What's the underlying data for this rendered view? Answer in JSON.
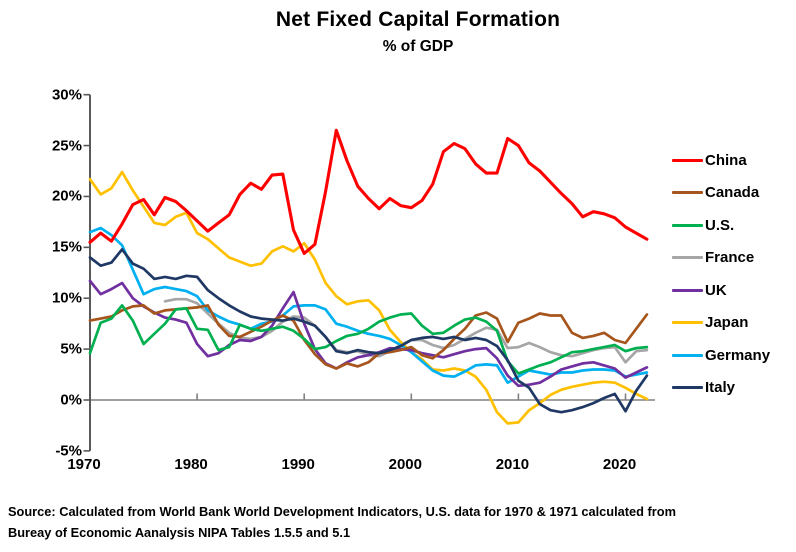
{
  "title": "Net Fixed Capital Formation",
  "subtitle": "% of GDP",
  "source_line1": "Source:  Calculated from World Bank World Development Indicators, U.S. data for 1970 & 1971 calculated from",
  "source_line2": "Bureay of Economic Aanalysis NIPA Tables 1.5.5 and 5.1",
  "chart_data": {
    "type": "line",
    "xlabel": "",
    "ylabel": "",
    "xlim": [
      1970,
      2022
    ],
    "ylim": [
      -5,
      30
    ],
    "x_ticks": [
      1970,
      1980,
      1990,
      2000,
      2010,
      2020
    ],
    "y_ticks": [
      30,
      25,
      20,
      15,
      10,
      5,
      0,
      -5
    ],
    "y_tick_suffix": "%",
    "grid": false,
    "legend_position": "right",
    "axis_color": "#595959",
    "zero_line_color": "#808080",
    "series": [
      {
        "name": "China",
        "color": "#FF0000",
        "start_year": 1970,
        "values": [
          15.5,
          16.4,
          15.6,
          17.3,
          19.2,
          19.7,
          18.2,
          19.9,
          19.5,
          18.6,
          17.6,
          16.6,
          17.4,
          18.2,
          20.2,
          21.3,
          20.7,
          22.1,
          22.2,
          16.7,
          14.4,
          15.3,
          20.5,
          26.5,
          23.5,
          21.0,
          19.8,
          18.8,
          19.8,
          19.1,
          18.9,
          19.6,
          21.2,
          24.4,
          25.2,
          24.7,
          23.2,
          22.3,
          22.3,
          25.7,
          25.0,
          23.3,
          22.5,
          21.4,
          20.3,
          19.3,
          18.0,
          18.5,
          18.3,
          17.9,
          17.0,
          16.4,
          15.8
        ]
      },
      {
        "name": "Canada",
        "color": "#A6561D",
        "start_year": 1970,
        "values": [
          7.8,
          8.0,
          8.2,
          8.8,
          9.2,
          9.3,
          8.5,
          8.8,
          8.9,
          9.0,
          9.1,
          9.3,
          7.4,
          6.3,
          6.2,
          6.7,
          7.2,
          7.8,
          8.3,
          7.8,
          5.9,
          4.5,
          3.5,
          3.1,
          3.6,
          3.3,
          3.7,
          4.6,
          4.7,
          4.9,
          5.2,
          4.4,
          4.1,
          4.9,
          6.0,
          7.0,
          8.3,
          8.6,
          8.0,
          5.7,
          7.6,
          8.0,
          8.5,
          8.3,
          8.3,
          6.6,
          6.1,
          6.3,
          6.6,
          5.9,
          5.6,
          7.0,
          8.4
        ]
      },
      {
        "name": "U.S.",
        "color": "#00B050",
        "start_year": 1970,
        "values": [
          4.6,
          7.6,
          8.0,
          9.3,
          7.8,
          5.5,
          6.5,
          7.5,
          8.9,
          9.0,
          7.0,
          6.9,
          4.9,
          5.2,
          7.4,
          7.0,
          6.8,
          7.0,
          7.2,
          6.8,
          6.0,
          5.0,
          5.2,
          5.8,
          6.3,
          6.5,
          7.0,
          7.7,
          8.1,
          8.4,
          8.5,
          7.3,
          6.5,
          6.6,
          7.3,
          7.9,
          8.1,
          7.7,
          6.8,
          3.8,
          2.6,
          3.0,
          3.4,
          3.7,
          4.2,
          4.7,
          4.8,
          5.0,
          5.2,
          5.4,
          4.8,
          5.1,
          5.2
        ]
      },
      {
        "name": "France",
        "color": "#A6A6A6",
        "start_year": 1977,
        "values": [
          9.7,
          9.9,
          9.9,
          9.5,
          8.5,
          7.5,
          6.6,
          6.1,
          6.0,
          6.2,
          6.8,
          7.7,
          8.2,
          8.1,
          7.3,
          6.2,
          4.9,
          4.7,
          4.8,
          4.4,
          4.3,
          4.8,
          5.4,
          5.9,
          5.9,
          5.4,
          5.1,
          5.4,
          6.0,
          6.6,
          7.1,
          6.9,
          5.1,
          5.2,
          5.6,
          5.2,
          4.7,
          4.4,
          4.3,
          4.6,
          4.9,
          5.1,
          5.2,
          3.7,
          4.8,
          4.9
        ]
      },
      {
        "name": "UK",
        "color": "#7030A0",
        "start_year": 1970,
        "values": [
          11.7,
          10.4,
          10.9,
          11.5,
          10.0,
          9.2,
          8.6,
          8.1,
          7.9,
          7.6,
          5.5,
          4.3,
          4.6,
          5.4,
          5.9,
          5.8,
          6.2,
          7.3,
          9.0,
          10.6,
          7.5,
          5.0,
          3.6,
          3.1,
          3.7,
          4.2,
          4.4,
          4.7,
          5.1,
          5.0,
          4.9,
          4.6,
          4.4,
          4.2,
          4.5,
          4.8,
          5.0,
          5.1,
          4.1,
          2.4,
          1.4,
          1.5,
          1.7,
          2.3,
          3.0,
          3.3,
          3.6,
          3.7,
          3.4,
          3.1,
          2.2,
          2.7,
          3.2
        ]
      },
      {
        "name": "Japan",
        "color": "#FFC000",
        "start_year": 1970,
        "values": [
          21.7,
          20.2,
          20.8,
          22.4,
          20.6,
          19.0,
          17.4,
          17.2,
          18.0,
          18.4,
          16.4,
          15.8,
          14.9,
          14.0,
          13.6,
          13.2,
          13.4,
          14.6,
          15.1,
          14.6,
          15.4,
          13.8,
          11.5,
          10.2,
          9.4,
          9.7,
          9.8,
          8.8,
          6.9,
          5.7,
          4.7,
          4.0,
          3.0,
          2.9,
          3.1,
          2.9,
          2.3,
          1.0,
          -1.2,
          -2.3,
          -2.2,
          -1.0,
          -0.3,
          0.5,
          1.0,
          1.3,
          1.5,
          1.7,
          1.8,
          1.7,
          1.2,
          0.6,
          0.1
        ]
      },
      {
        "name": "Germany",
        "color": "#00B0F0",
        "start_year": 1970,
        "values": [
          16.5,
          16.9,
          16.2,
          15.2,
          12.8,
          10.4,
          10.9,
          11.1,
          10.9,
          10.7,
          10.2,
          8.8,
          8.2,
          7.7,
          7.4,
          7.0,
          7.5,
          7.7,
          8.3,
          9.2,
          9.3,
          9.3,
          8.9,
          7.5,
          7.2,
          6.8,
          6.5,
          6.3,
          6.0,
          5.4,
          4.7,
          3.8,
          2.9,
          2.4,
          2.3,
          2.8,
          3.4,
          3.5,
          3.4,
          1.7,
          2.3,
          2.9,
          2.7,
          2.5,
          2.7,
          2.7,
          2.9,
          3.0,
          3.0,
          2.9,
          2.3,
          2.5,
          2.7
        ]
      },
      {
        "name": "Italy",
        "color": "#1F3864",
        "start_year": 1970,
        "values": [
          14.0,
          13.2,
          13.5,
          14.8,
          13.4,
          12.9,
          11.9,
          12.1,
          11.9,
          12.2,
          12.1,
          10.8,
          10.0,
          9.3,
          8.7,
          8.2,
          8.0,
          7.9,
          7.8,
          8.0,
          7.7,
          7.3,
          6.2,
          4.8,
          4.6,
          4.9,
          4.7,
          4.6,
          4.9,
          5.3,
          5.9,
          6.1,
          6.2,
          6.0,
          6.2,
          5.9,
          6.1,
          5.9,
          5.3,
          3.9,
          1.9,
          1.2,
          -0.4,
          -1.0,
          -1.2,
          -1.0,
          -0.7,
          -0.3,
          0.2,
          0.6,
          -1.1,
          0.9,
          2.4
        ]
      }
    ]
  }
}
